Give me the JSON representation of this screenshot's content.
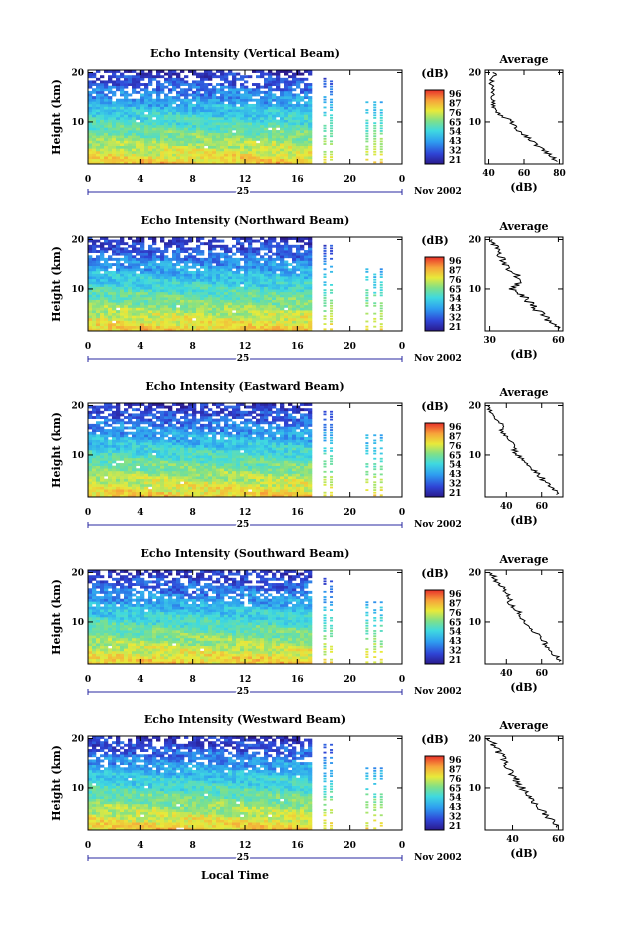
{
  "figure": {
    "x_axis_label": "Local Time",
    "month_label": "Nov 2002",
    "day_label": "25"
  },
  "chart_data": [
    {
      "type": "heatmap",
      "title": "Echo Intensity (Vertical Beam)",
      "ylabel": "Height (km)",
      "x_ticks": [
        "0",
        "4",
        "8",
        "12",
        "16",
        "20",
        "0"
      ],
      "xlim": [
        0,
        24
      ],
      "y_ticks": [
        "20",
        "10"
      ],
      "ylim": [
        1.5,
        20.5
      ],
      "data_until_hour": 17,
      "sparse_columns_hours": [
        18,
        18.5,
        21.2,
        21.8,
        22.3
      ],
      "colorbar": {
        "unit": "(dB)",
        "ticks": [
          "96",
          "87",
          "76",
          "65",
          "54",
          "43",
          "32",
          "21"
        ]
      },
      "average_profile": {
        "title": "Average",
        "xlabel": "(dB)",
        "x_ticks": [
          "40",
          "60",
          "80"
        ],
        "xlim": [
          38,
          82
        ],
        "y_ticks": [
          "20",
          "10"
        ],
        "ylim": [
          1.5,
          20.5
        ],
        "heights_km": [
          2,
          4,
          6,
          8,
          10,
          12,
          14,
          16,
          18,
          20
        ],
        "values_db": [
          79,
          72,
          65,
          58,
          53,
          45,
          42,
          43,
          41,
          44
        ]
      }
    },
    {
      "type": "heatmap",
      "title": "Echo Intensity (Northward Beam)",
      "ylabel": "Height (km)",
      "x_ticks": [
        "0",
        "4",
        "8",
        "12",
        "16",
        "20",
        "0"
      ],
      "xlim": [
        0,
        24
      ],
      "y_ticks": [
        "20",
        "10"
      ],
      "ylim": [
        1.5,
        20.5
      ],
      "data_until_hour": 17,
      "sparse_columns_hours": [
        18,
        18.5,
        21.2,
        21.8,
        22.3
      ],
      "colorbar": {
        "unit": "(dB)",
        "ticks": [
          "96",
          "87",
          "76",
          "65",
          "54",
          "43",
          "32",
          "21"
        ]
      },
      "average_profile": {
        "title": "Average",
        "xlabel": "(dB)",
        "x_ticks": [
          "30",
          "60"
        ],
        "xlim": [
          28,
          62
        ],
        "y_ticks": [
          "20",
          "10"
        ],
        "ylim": [
          1.5,
          20.5
        ],
        "heights_km": [
          2,
          4,
          6,
          8,
          10,
          12,
          14,
          16,
          18,
          20
        ],
        "values_db": [
          60,
          55,
          50,
          46,
          40,
          44,
          38,
          36,
          33,
          31
        ]
      }
    },
    {
      "type": "heatmap",
      "title": "Echo Intensity (Eastward Beam)",
      "ylabel": "Height (km)",
      "x_ticks": [
        "0",
        "4",
        "8",
        "12",
        "16",
        "20",
        "0"
      ],
      "xlim": [
        0,
        24
      ],
      "y_ticks": [
        "20",
        "10"
      ],
      "ylim": [
        1.5,
        20.5
      ],
      "data_until_hour": 17,
      "sparse_columns_hours": [
        18,
        18.5,
        21.2,
        21.8,
        22.3
      ],
      "colorbar": {
        "unit": "(dB)",
        "ticks": [
          "96",
          "87",
          "76",
          "65",
          "54",
          "43",
          "32",
          "21"
        ]
      },
      "average_profile": {
        "title": "Average",
        "xlabel": "(dB)",
        "x_ticks": [
          "40",
          "60"
        ],
        "xlim": [
          28,
          72
        ],
        "y_ticks": [
          "20",
          "10"
        ],
        "ylim": [
          1.5,
          20.5
        ],
        "heights_km": [
          2,
          4,
          6,
          8,
          10,
          12,
          14,
          16,
          18,
          20
        ],
        "values_db": [
          70,
          64,
          58,
          52,
          46,
          44,
          39,
          37,
          33,
          30
        ]
      }
    },
    {
      "type": "heatmap",
      "title": "Echo Intensity (Southward Beam)",
      "ylabel": "Height (km)",
      "x_ticks": [
        "0",
        "4",
        "8",
        "12",
        "16",
        "20",
        "0"
      ],
      "xlim": [
        0,
        24
      ],
      "y_ticks": [
        "20",
        "10"
      ],
      "ylim": [
        1.5,
        20.5
      ],
      "data_until_hour": 17,
      "sparse_columns_hours": [
        18,
        18.5,
        21.2,
        21.8,
        22.3
      ],
      "colorbar": {
        "unit": "(dB)",
        "ticks": [
          "96",
          "87",
          "76",
          "65",
          "54",
          "43",
          "32",
          "21"
        ]
      },
      "average_profile": {
        "title": "Average",
        "xlabel": "(dB)",
        "x_ticks": [
          "40",
          "60"
        ],
        "xlim": [
          28,
          72
        ],
        "y_ticks": [
          "20",
          "10"
        ],
        "ylim": [
          1.5,
          20.5
        ],
        "heights_km": [
          2,
          4,
          6,
          8,
          10,
          12,
          14,
          16,
          18,
          20
        ],
        "values_db": [
          70,
          66,
          61,
          56,
          50,
          47,
          42,
          40,
          35,
          31
        ]
      }
    },
    {
      "type": "heatmap",
      "title": "Echo Intensity (Westward Beam)",
      "ylabel": "Height (km)",
      "x_ticks": [
        "0",
        "4",
        "8",
        "12",
        "16",
        "20",
        "0"
      ],
      "xlim": [
        0,
        24
      ],
      "y_ticks": [
        "20",
        "10"
      ],
      "ylim": [
        1.5,
        20.5
      ],
      "data_until_hour": 17,
      "sparse_columns_hours": [
        18,
        18.5,
        21.2,
        21.8,
        22.3
      ],
      "colorbar": {
        "unit": "(dB)",
        "ticks": [
          "96",
          "87",
          "76",
          "65",
          "54",
          "43",
          "32",
          "21"
        ]
      },
      "average_profile": {
        "title": "Average",
        "xlabel": "(dB)",
        "x_ticks": [
          "40",
          "60"
        ],
        "xlim": [
          28,
          62
        ],
        "y_ticks": [
          "20",
          "10"
        ],
        "ylim": [
          1.5,
          20.5
        ],
        "heights_km": [
          2,
          4,
          6,
          8,
          10,
          12,
          14,
          16,
          18,
          20
        ],
        "values_db": [
          60,
          56,
          52,
          48,
          44,
          41,
          38,
          36,
          33,
          30
        ]
      }
    }
  ]
}
